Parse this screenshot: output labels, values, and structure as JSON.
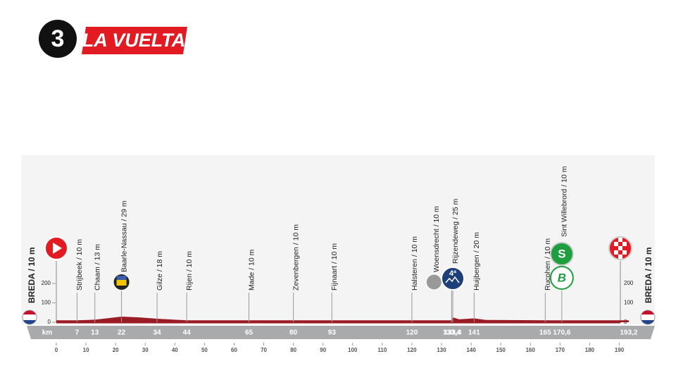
{
  "chart_data": {
    "type": "profile",
    "stage": "3",
    "brand": "LA VUELTA",
    "start": "BREDA / 10 m",
    "finish": "BREDA / 10 m",
    "x_axis_label": "km",
    "xlim": [
      0,
      193.2
    ],
    "xticks": [
      0,
      10,
      20,
      30,
      40,
      50,
      60,
      70,
      80,
      90,
      100,
      110,
      120,
      130,
      140,
      150,
      160,
      170,
      180,
      190
    ],
    "ylim": [
      0,
      800
    ],
    "yticks": [
      0,
      100,
      200
    ],
    "profile": {
      "color": "#9b1b24",
      "x": [
        0,
        7,
        13,
        18,
        22,
        28,
        34,
        44,
        65,
        80,
        93,
        120,
        133.4,
        133.8,
        136,
        141,
        145,
        165,
        170.6,
        193.2
      ],
      "values": [
        10,
        10,
        13,
        22,
        29,
        25,
        18,
        10,
        10,
        10,
        10,
        10,
        10,
        25,
        15,
        20,
        12,
        10,
        10,
        10
      ]
    },
    "waypoints": [
      {
        "name": "Strijbeek / 10 m",
        "km": 7
      },
      {
        "name": "Chaam / 13 m",
        "km": 13
      },
      {
        "name": "Baarle-Nassau / 29 m",
        "km": 22,
        "icon": "border"
      },
      {
        "name": "Gilze / 18 m",
        "km": 34
      },
      {
        "name": "Rijen / 10 m",
        "km": 44
      },
      {
        "name": "Made / 10 m",
        "km": 65
      },
      {
        "name": "Zevenbergen / 10 m",
        "km": 80
      },
      {
        "name": "Fijnaart / 10 m",
        "km": 93
      },
      {
        "name": "Halsteren / 10 m",
        "km": 120
      },
      {
        "name": "Woensdrecht / 10 m",
        "km": {
          "value": 133.4,
          "label": "133,4"
        },
        "icon": "climb-start"
      },
      {
        "name": "Rijzendeweg / 25 m",
        "km": {
          "value": 133.8,
          "label": "133,8"
        },
        "icon": "kom",
        "icon_label": "4ª"
      },
      {
        "name": "Huijbergen / 20 m",
        "km": 141
      },
      {
        "name": "Rucphen / 10 m",
        "km": 165
      },
      {
        "name": "Sint Willebrord / 10 m",
        "km": {
          "value": 170.6,
          "label": "170,6"
        },
        "icon": "sprint",
        "icon_label": "S",
        "icon2_label": "B"
      },
      {
        "name": null,
        "km": {
          "value": 193.2,
          "label": "193,2"
        }
      }
    ]
  }
}
